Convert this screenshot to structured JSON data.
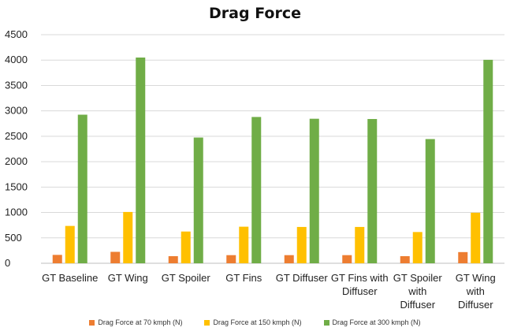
{
  "chart_data": {
    "type": "bar",
    "title": "Drag Force",
    "categories": [
      [
        "GT Baseline"
      ],
      [
        "GT Wing"
      ],
      [
        "GT Spoiler"
      ],
      [
        "GT Fins"
      ],
      [
        "GT Diffuser"
      ],
      [
        "GT Fins with",
        "Diffuser"
      ],
      [
        "GT Spoiler",
        "with",
        "Diffuser"
      ],
      [
        "GT Wing",
        "with",
        "Diffuser"
      ]
    ],
    "series": [
      {
        "name": "Drag Force at 70 kmph (N)",
        "color": "#ed7d31",
        "values": [
          165,
          225,
          140,
          160,
          160,
          160,
          140,
          220
        ]
      },
      {
        "name": "Drag Force at 150 kmph (N)",
        "color": "#ffc000",
        "values": [
          735,
          1010,
          625,
          720,
          715,
          715,
          615,
          995
        ]
      },
      {
        "name": "Drag Force at 300 kmph (N)",
        "color": "#70ad47",
        "values": [
          2925,
          4050,
          2475,
          2880,
          2845,
          2840,
          2445,
          4005
        ]
      }
    ],
    "ylim": [
      0,
      4500
    ],
    "yticks": [
      "0",
      "500",
      "1000",
      "1500",
      "2000",
      "2500",
      "3000",
      "3500",
      "4000",
      "4500"
    ],
    "xlabel": "",
    "ylabel": "",
    "grid": true,
    "legend_position": "bottom"
  }
}
